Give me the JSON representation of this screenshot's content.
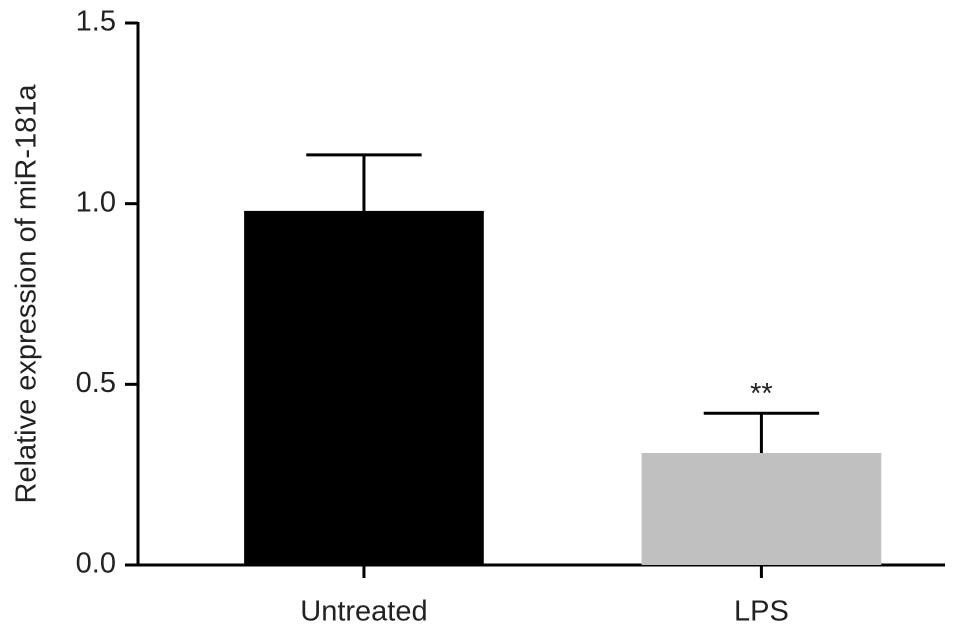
{
  "chart_data": {
    "type": "bar",
    "y_label": "Relative expression of miR-181a",
    "categories": [
      "Untreated",
      "LPS"
    ],
    "values": [
      0.98,
      0.31
    ],
    "errors": [
      0.155,
      0.11
    ],
    "colors": [
      "#000000",
      "#c0c0c0"
    ],
    "ylim": [
      0,
      1.5
    ],
    "yticks": [
      {
        "value": 0,
        "label": "0.0"
      },
      {
        "value": 0.5,
        "label": "0.5"
      },
      {
        "value": 1,
        "label": "1.0"
      },
      {
        "value": 1.5,
        "label": "1.5"
      }
    ],
    "grid": false,
    "annotations": [
      {
        "text": "**",
        "category": "LPS"
      }
    ]
  }
}
